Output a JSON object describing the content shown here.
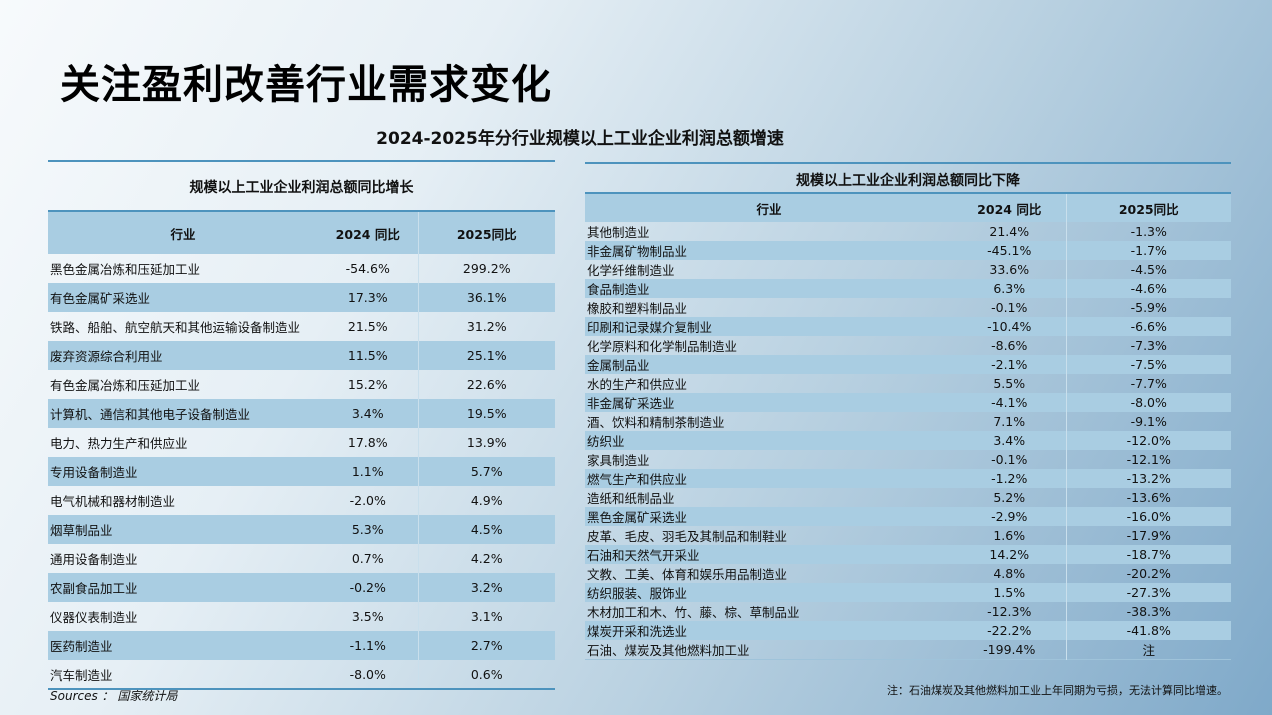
{
  "title": "关注盈利改善行业需求变化",
  "subtitle": "2024-2025年分行业规模以上工业企业利润总额增速",
  "left_table": {
    "header": "规模以上工业企业利润总额同比增长",
    "columns": [
      "行业",
      "2024 同比",
      "2025同比"
    ],
    "rows": [
      [
        "黑色金属冶炼和压延加工业",
        "-54.6%",
        "299.2%"
      ],
      [
        "有色金属矿采选业",
        "17.3%",
        "36.1%"
      ],
      [
        "铁路、船舶、航空航天和其他运输设备制造业",
        "21.5%",
        "31.2%"
      ],
      [
        "废弃资源综合利用业",
        "11.5%",
        "25.1%"
      ],
      [
        "有色金属冶炼和压延加工业",
        "15.2%",
        "22.6%"
      ],
      [
        "计算机、通信和其他电子设备制造业",
        "3.4%",
        "19.5%"
      ],
      [
        "电力、热力生产和供应业",
        "17.8%",
        "13.9%"
      ],
      [
        "专用设备制造业",
        "1.1%",
        "5.7%"
      ],
      [
        "电气机械和器材制造业",
        "-2.0%",
        "4.9%"
      ],
      [
        "烟草制品业",
        "5.3%",
        "4.5%"
      ],
      [
        "通用设备制造业",
        "0.7%",
        "4.2%"
      ],
      [
        "农副食品加工业",
        "-0.2%",
        "3.2%"
      ],
      [
        "仪器仪表制造业",
        "3.5%",
        "3.1%"
      ],
      [
        "医药制造业",
        "-1.1%",
        "2.7%"
      ],
      [
        "汽车制造业",
        "-8.0%",
        "0.6%"
      ]
    ]
  },
  "right_table": {
    "header": "规模以上工业企业利润总额同比下降",
    "columns": [
      "行业",
      "2024 同比",
      "2025同比"
    ],
    "rows": [
      [
        "其他制造业",
        "21.4%",
        "-1.3%"
      ],
      [
        "非金属矿物制品业",
        "-45.1%",
        "-1.7%"
      ],
      [
        "化学纤维制造业",
        "33.6%",
        "-4.5%"
      ],
      [
        "食品制造业",
        "6.3%",
        "-4.6%"
      ],
      [
        "橡胶和塑料制品业",
        "-0.1%",
        "-5.9%"
      ],
      [
        "印刷和记录媒介复制业",
        "-10.4%",
        "-6.6%"
      ],
      [
        "化学原料和化学制品制造业",
        "-8.6%",
        "-7.3%"
      ],
      [
        "金属制品业",
        "-2.1%",
        "-7.5%"
      ],
      [
        "水的生产和供应业",
        "5.5%",
        "-7.7%"
      ],
      [
        "非金属矿采选业",
        "-4.1%",
        "-8.0%"
      ],
      [
        "酒、饮料和精制茶制造业",
        "7.1%",
        "-9.1%"
      ],
      [
        "纺织业",
        "3.4%",
        "-12.0%"
      ],
      [
        "家具制造业",
        "-0.1%",
        "-12.1%"
      ],
      [
        "燃气生产和供应业",
        "-1.2%",
        "-13.2%"
      ],
      [
        "造纸和纸制品业",
        "5.2%",
        "-13.6%"
      ],
      [
        "黑色金属矿采选业",
        "-2.9%",
        "-16.0%"
      ],
      [
        "皮革、毛皮、羽毛及其制品和制鞋业",
        "1.6%",
        "-17.9%"
      ],
      [
        "石油和天然气开采业",
        "14.2%",
        "-18.7%"
      ],
      [
        "文教、工美、体育和娱乐用品制造业",
        "4.8%",
        "-20.2%"
      ],
      [
        "纺织服装、服饰业",
        "1.5%",
        "-27.3%"
      ],
      [
        "木材加工和木、竹、藤、棕、草制品业",
        "-12.3%",
        "-38.3%"
      ],
      [
        "煤炭开采和洗选业",
        "-22.2%",
        "-41.8%"
      ],
      [
        "石油、煤炭及其他燃料加工业",
        "-199.4%",
        "注"
      ]
    ]
  },
  "sources": "Sources ： 国家统计局",
  "note": "注：石油煤炭及其他燃料加工业上年同期为亏损，无法计算同比增速。"
}
